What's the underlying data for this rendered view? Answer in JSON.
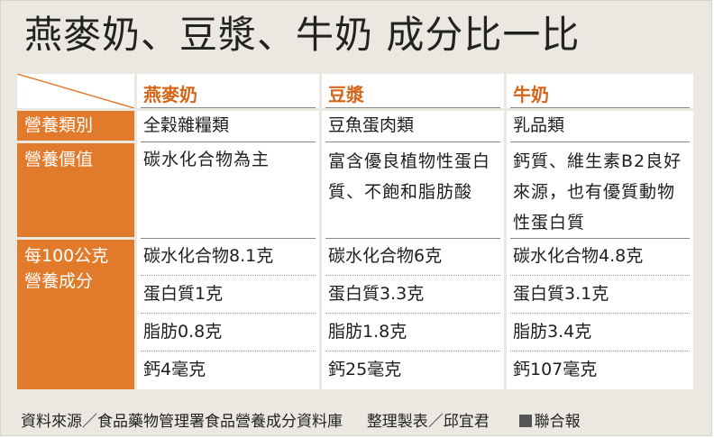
{
  "title": "燕麥奶、豆漿、牛奶 成分比一比",
  "columns": [
    "燕麥奶",
    "豆漿",
    "牛奶"
  ],
  "rows": {
    "category": {
      "label": "營養類別",
      "values": [
        "全穀雜糧類",
        "豆魚蛋肉類",
        "乳品類"
      ]
    },
    "value": {
      "label": "營養價值",
      "values": [
        "碳水化合物為主",
        "富含優良植物性蛋白質、不飽和脂肪酸",
        "鈣質、維生素B2良好來源，也有優質動物性蛋白質"
      ]
    },
    "per100g": {
      "label_line1": "每100公克",
      "label_line2": "營養成分",
      "oat": [
        "碳水化合物8.1克",
        "蛋白質1克",
        "脂肪0.8克",
        "鈣4毫克"
      ],
      "soy": [
        "碳水化合物6克",
        "蛋白質3.3克",
        "脂肪1.8克",
        "鈣25毫克"
      ],
      "milk": [
        "碳水化合物4.8克",
        "蛋白質3.1克",
        "脂肪3.4克",
        "鈣107毫克"
      ]
    }
  },
  "footer": {
    "source": "資料來源／食品藥物管理署食品營養成分資料庫",
    "compiled": "整理製表／邱宜君",
    "publisher": "聯合報"
  },
  "colors": {
    "accent": "#e27a2c",
    "header_text": "#d5651a",
    "background": "#ebe8e2"
  }
}
